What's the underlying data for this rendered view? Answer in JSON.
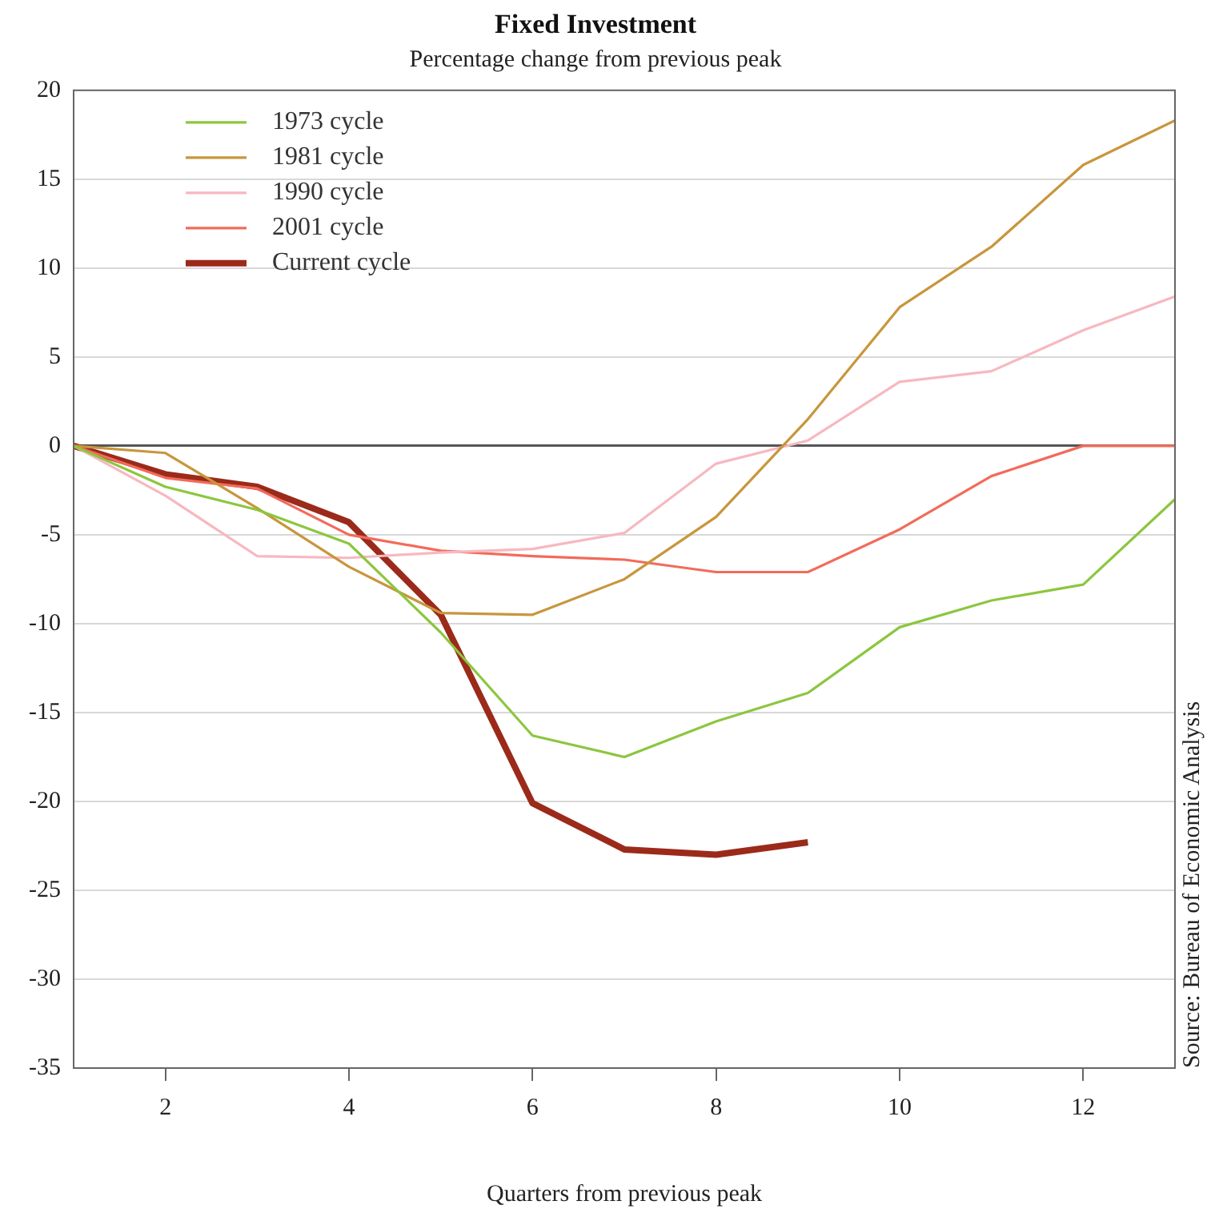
{
  "chart_data": {
    "type": "line",
    "title": "Fixed Investment",
    "subtitle": "Percentage change from previous peak",
    "xlabel": "Quarters from previous peak",
    "x": [
      1,
      2,
      3,
      4,
      5,
      6,
      7,
      8,
      9,
      10,
      11,
      12,
      13
    ],
    "series": [
      {
        "name": "1973 cycle",
        "color": "#8cc63f",
        "values": [
          0,
          -2.3,
          -3.6,
          -5.5,
          -10.5,
          -16.3,
          -17.5,
          -15.5,
          -13.9,
          -10.2,
          -8.7,
          -7.8,
          -3
        ]
      },
      {
        "name": "1981 cycle",
        "color": "#c8963c",
        "values": [
          0,
          -0.4,
          -3.5,
          -6.8,
          -9.4,
          -9.5,
          -7.5,
          -4,
          1.5,
          7.8,
          11.2,
          15.8,
          18.3
        ]
      },
      {
        "name": "1990 cycle",
        "color": "#f7b8c0",
        "values": [
          0,
          -2.8,
          -6.2,
          -6.3,
          -6,
          -5.8,
          -4.9,
          -1,
          0.3,
          3.6,
          4.2,
          6.5,
          8.4
        ]
      },
      {
        "name": "2001 cycle",
        "color": "#f26b5b",
        "values": [
          0,
          -1.8,
          -2.4,
          -5,
          -5.9,
          -6.2,
          -6.4,
          -7.1,
          -7.1,
          -4.7,
          -1.7,
          0,
          0
        ]
      },
      {
        "name": "Current cycle",
        "color": "#9b2a1a",
        "values": [
          0,
          -1.6,
          -2.3,
          -4.3,
          -9.5,
          -20.1,
          -22.7,
          -23,
          -22.3,
          null,
          null,
          null,
          null
        ]
      }
    ],
    "xlim": [
      1,
      13
    ],
    "xticks": [
      2,
      4,
      6,
      8,
      10,
      12
    ],
    "ylim": [
      -35,
      20
    ],
    "yticks": [
      -35,
      -30,
      -25,
      -20,
      -15,
      -10,
      -5,
      0,
      5,
      10,
      15,
      20
    ],
    "grid": "y",
    "legend": "top left",
    "marker": "none",
    "line_style": "solid",
    "annotations": [
      "Source: Bureau of Economic Analysis"
    ]
  }
}
